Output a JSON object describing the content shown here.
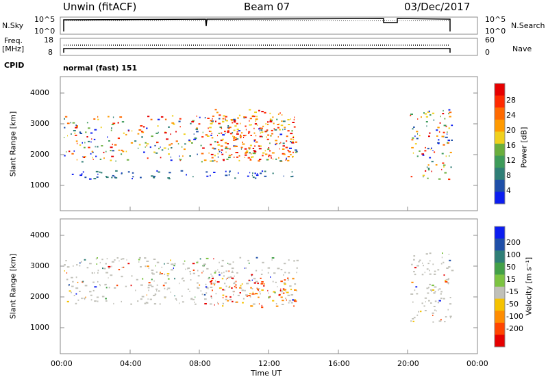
{
  "header": {
    "title": "Unwin (fitACF)",
    "beam": "Beam 07",
    "date": "03/Dec/2017"
  },
  "sky_panel": {
    "left_label": "N.Sky",
    "right_label": "N.Search",
    "left_ticks": [
      "10^5",
      "10^0"
    ],
    "right_ticks": [
      "10^5",
      "10^0"
    ]
  },
  "freq_panel": {
    "left_label": "Freq.",
    "left_unit": "[MHz]",
    "right_label": "Nave",
    "left_ticks": [
      "18",
      "8"
    ],
    "right_ticks": [
      "60",
      "0"
    ]
  },
  "cpid": {
    "label": "CPID",
    "value": "normal (fast) 151"
  },
  "colors": {
    "frame": "#888888",
    "power_scale": [
      "#0b1df0",
      "#1f4fa8",
      "#2f7e76",
      "#3e9b5a",
      "#6aae3d",
      "#f0d01d",
      "#ff9a00",
      "#ff6a00",
      "#ff2a00",
      "#e60000"
    ],
    "velocity_scale": [
      "#0b1df0",
      "#1f4fa8",
      "#2f7e76",
      "#43a047",
      "#7cc341",
      "#c0c0b8",
      "#f5c200",
      "#ff8c00",
      "#ff4500",
      "#e60000"
    ]
  },
  "chart_data": [
    {
      "type": "heatmap",
      "panel": "power",
      "xlabel": "",
      "ylabel": "Slant Range [km]",
      "xlim": [
        "00:00",
        "24:00"
      ],
      "ylim": [
        0,
        4600
      ],
      "yticks": [
        1000,
        2000,
        3000,
        4000
      ],
      "xticks": [
        "00:00",
        "04:00",
        "08:00",
        "12:00",
        "16:00",
        "20:00",
        "00:00"
      ],
      "colorbar": {
        "label": "Power [dB]",
        "ticks": [
          "28",
          "24",
          "20",
          "16",
          "12",
          "8",
          "4"
        ],
        "range": [
          0,
          32
        ]
      },
      "echo_regions": [
        {
          "t_start": 0.2,
          "t_end": 13.6,
          "range_start": 1700,
          "range_end": 3300,
          "level": "mixed"
        },
        {
          "t_start": 0.2,
          "t_end": 13.6,
          "range_start": 1100,
          "range_end": 1400,
          "level": "low"
        },
        {
          "t_start": 8.5,
          "t_end": 13.5,
          "range_start": 1700,
          "range_end": 3500,
          "level": "high"
        },
        {
          "t_start": 20.1,
          "t_end": 22.5,
          "range_start": 1100,
          "range_end": 3500,
          "level": "mixed"
        }
      ]
    },
    {
      "type": "heatmap",
      "panel": "velocity",
      "xlabel": "Time UT",
      "ylabel": "Slant Range [km]",
      "xlim": [
        "00:00",
        "24:00"
      ],
      "ylim": [
        0,
        4600
      ],
      "yticks": [
        1000,
        2000,
        3000,
        4000
      ],
      "xticks": [
        "00:00",
        "04:00",
        "08:00",
        "12:00",
        "16:00",
        "20:00",
        "00:00"
      ],
      "colorbar": {
        "label": "Velocity [m s⁻¹]",
        "ticks": [
          "200",
          "100",
          "50",
          "15",
          "-15",
          "-50",
          "-100",
          "-200"
        ]
      },
      "echo_regions": [
        {
          "t_start": 0.2,
          "t_end": 13.6,
          "range_start": 1700,
          "range_end": 3300,
          "level": "near-zero"
        },
        {
          "t_start": 8.5,
          "t_end": 13.5,
          "range_start": 1600,
          "range_end": 2600,
          "level": "negative"
        },
        {
          "t_start": 20.1,
          "t_end": 22.5,
          "range_start": 1100,
          "range_end": 3500,
          "level": "near-zero"
        }
      ]
    }
  ]
}
